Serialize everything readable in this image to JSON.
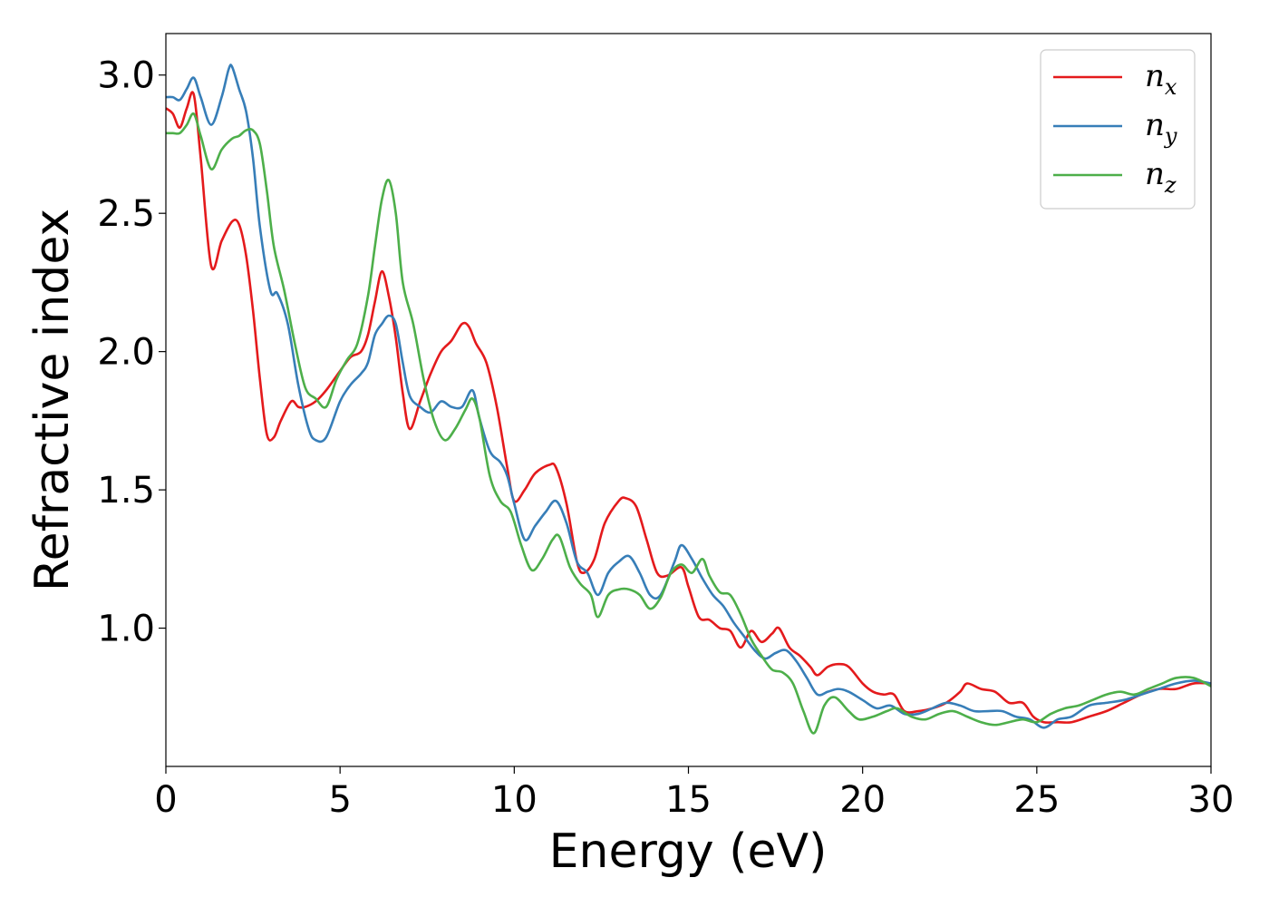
{
  "chart_data": {
    "type": "line",
    "title": "",
    "xlabel": "Energy (eV)",
    "ylabel": "Refractive index",
    "xlim": [
      0,
      30
    ],
    "ylim": [
      0.5,
      3.15
    ],
    "xticks": [
      0,
      5,
      10,
      15,
      20,
      25,
      30
    ],
    "xtick_labels": [
      "0",
      "5",
      "10",
      "15",
      "20",
      "25",
      "30"
    ],
    "yticks": [
      1.0,
      1.5,
      2.0,
      2.5,
      3.0
    ],
    "ytick_labels": [
      "1.0",
      "1.5",
      "2.0",
      "2.5",
      "3.0"
    ],
    "grid": false,
    "legend_position": "top-right",
    "series": [
      {
        "name": "n",
        "subscript": "x",
        "color": "#e41a1c",
        "points": [
          [
            0,
            2.88
          ],
          [
            0.2,
            2.86
          ],
          [
            0.4,
            2.81
          ],
          [
            0.6,
            2.88
          ],
          [
            0.8,
            2.93
          ],
          [
            1.0,
            2.7
          ],
          [
            1.3,
            2.31
          ],
          [
            1.6,
            2.4
          ],
          [
            1.9,
            2.47
          ],
          [
            2.1,
            2.46
          ],
          [
            2.3,
            2.35
          ],
          [
            2.5,
            2.15
          ],
          [
            2.7,
            1.9
          ],
          [
            2.9,
            1.7
          ],
          [
            3.1,
            1.69
          ],
          [
            3.3,
            1.75
          ],
          [
            3.6,
            1.82
          ],
          [
            3.8,
            1.8
          ],
          [
            4.0,
            1.8
          ],
          [
            4.3,
            1.82
          ],
          [
            4.6,
            1.86
          ],
          [
            5.0,
            1.93
          ],
          [
            5.3,
            1.98
          ],
          [
            5.6,
            2.0
          ],
          [
            5.8,
            2.06
          ],
          [
            6.0,
            2.18
          ],
          [
            6.2,
            2.29
          ],
          [
            6.4,
            2.2
          ],
          [
            6.6,
            2.05
          ],
          [
            6.8,
            1.85
          ],
          [
            7.0,
            1.72
          ],
          [
            7.3,
            1.82
          ],
          [
            7.6,
            1.92
          ],
          [
            7.9,
            2.0
          ],
          [
            8.2,
            2.04
          ],
          [
            8.5,
            2.1
          ],
          [
            8.7,
            2.09
          ],
          [
            8.9,
            2.03
          ],
          [
            9.2,
            1.96
          ],
          [
            9.5,
            1.8
          ],
          [
            9.8,
            1.58
          ],
          [
            10.0,
            1.46
          ],
          [
            10.3,
            1.5
          ],
          [
            10.6,
            1.56
          ],
          [
            11.0,
            1.59
          ],
          [
            11.2,
            1.58
          ],
          [
            11.5,
            1.45
          ],
          [
            11.8,
            1.24
          ],
          [
            12.0,
            1.2
          ],
          [
            12.3,
            1.25
          ],
          [
            12.6,
            1.38
          ],
          [
            13.0,
            1.46
          ],
          [
            13.2,
            1.47
          ],
          [
            13.5,
            1.44
          ],
          [
            13.8,
            1.32
          ],
          [
            14.1,
            1.2
          ],
          [
            14.4,
            1.19
          ],
          [
            14.8,
            1.22
          ],
          [
            15.0,
            1.15
          ],
          [
            15.3,
            1.04
          ],
          [
            15.6,
            1.03
          ],
          [
            15.9,
            1.0
          ],
          [
            16.2,
            0.99
          ],
          [
            16.5,
            0.93
          ],
          [
            16.8,
            0.99
          ],
          [
            17.1,
            0.95
          ],
          [
            17.4,
            0.98
          ],
          [
            17.6,
            1.0
          ],
          [
            17.9,
            0.93
          ],
          [
            18.2,
            0.9
          ],
          [
            18.5,
            0.86
          ],
          [
            18.7,
            0.83
          ],
          [
            19.0,
            0.86
          ],
          [
            19.3,
            0.87
          ],
          [
            19.6,
            0.86
          ],
          [
            20.0,
            0.8
          ],
          [
            20.3,
            0.77
          ],
          [
            20.6,
            0.76
          ],
          [
            20.9,
            0.76
          ],
          [
            21.2,
            0.7
          ],
          [
            21.6,
            0.7
          ],
          [
            22.0,
            0.71
          ],
          [
            22.4,
            0.73
          ],
          [
            22.8,
            0.77
          ],
          [
            23.0,
            0.8
          ],
          [
            23.4,
            0.78
          ],
          [
            23.8,
            0.77
          ],
          [
            24.2,
            0.73
          ],
          [
            24.6,
            0.73
          ],
          [
            24.9,
            0.68
          ],
          [
            25.2,
            0.66
          ],
          [
            25.6,
            0.66
          ],
          [
            26.0,
            0.66
          ],
          [
            26.5,
            0.68
          ],
          [
            27.0,
            0.7
          ],
          [
            27.5,
            0.73
          ],
          [
            28.0,
            0.76
          ],
          [
            28.5,
            0.78
          ],
          [
            29.0,
            0.78
          ],
          [
            29.5,
            0.8
          ],
          [
            30.0,
            0.8
          ]
        ]
      },
      {
        "name": "n",
        "subscript": "y",
        "color": "#377eb8",
        "points": [
          [
            0,
            2.92
          ],
          [
            0.2,
            2.92
          ],
          [
            0.4,
            2.91
          ],
          [
            0.6,
            2.95
          ],
          [
            0.8,
            2.99
          ],
          [
            1.0,
            2.92
          ],
          [
            1.3,
            2.82
          ],
          [
            1.6,
            2.92
          ],
          [
            1.8,
            3.02
          ],
          [
            1.9,
            3.03
          ],
          [
            2.1,
            2.95
          ],
          [
            2.3,
            2.87
          ],
          [
            2.5,
            2.7
          ],
          [
            2.7,
            2.45
          ],
          [
            3.0,
            2.22
          ],
          [
            3.2,
            2.21
          ],
          [
            3.5,
            2.1
          ],
          [
            3.8,
            1.88
          ],
          [
            4.1,
            1.72
          ],
          [
            4.3,
            1.68
          ],
          [
            4.6,
            1.69
          ],
          [
            5.0,
            1.82
          ],
          [
            5.3,
            1.88
          ],
          [
            5.6,
            1.92
          ],
          [
            5.8,
            1.96
          ],
          [
            6.0,
            2.06
          ],
          [
            6.2,
            2.1
          ],
          [
            6.4,
            2.13
          ],
          [
            6.6,
            2.1
          ],
          [
            6.8,
            1.96
          ],
          [
            7.0,
            1.84
          ],
          [
            7.3,
            1.8
          ],
          [
            7.6,
            1.78
          ],
          [
            7.9,
            1.82
          ],
          [
            8.2,
            1.8
          ],
          [
            8.5,
            1.8
          ],
          [
            8.8,
            1.86
          ],
          [
            9.0,
            1.76
          ],
          [
            9.3,
            1.64
          ],
          [
            9.6,
            1.6
          ],
          [
            9.8,
            1.55
          ],
          [
            10.0,
            1.45
          ],
          [
            10.3,
            1.32
          ],
          [
            10.6,
            1.37
          ],
          [
            10.9,
            1.42
          ],
          [
            11.2,
            1.46
          ],
          [
            11.5,
            1.38
          ],
          [
            11.8,
            1.24
          ],
          [
            12.1,
            1.2
          ],
          [
            12.4,
            1.12
          ],
          [
            12.7,
            1.2
          ],
          [
            13.0,
            1.24
          ],
          [
            13.3,
            1.26
          ],
          [
            13.6,
            1.2
          ],
          [
            13.9,
            1.12
          ],
          [
            14.2,
            1.12
          ],
          [
            14.6,
            1.24
          ],
          [
            14.8,
            1.3
          ],
          [
            15.1,
            1.25
          ],
          [
            15.4,
            1.18
          ],
          [
            15.7,
            1.12
          ],
          [
            16.0,
            1.08
          ],
          [
            16.3,
            1.02
          ],
          [
            16.6,
            0.97
          ],
          [
            16.9,
            0.92
          ],
          [
            17.2,
            0.89
          ],
          [
            17.5,
            0.91
          ],
          [
            17.8,
            0.92
          ],
          [
            18.1,
            0.88
          ],
          [
            18.4,
            0.82
          ],
          [
            18.7,
            0.76
          ],
          [
            19.0,
            0.77
          ],
          [
            19.3,
            0.78
          ],
          [
            19.6,
            0.77
          ],
          [
            20.0,
            0.74
          ],
          [
            20.4,
            0.71
          ],
          [
            20.8,
            0.72
          ],
          [
            21.2,
            0.69
          ],
          [
            21.6,
            0.69
          ],
          [
            22.0,
            0.71
          ],
          [
            22.4,
            0.73
          ],
          [
            22.8,
            0.72
          ],
          [
            23.2,
            0.7
          ],
          [
            23.6,
            0.7
          ],
          [
            24.0,
            0.7
          ],
          [
            24.4,
            0.68
          ],
          [
            24.8,
            0.67
          ],
          [
            25.2,
            0.64
          ],
          [
            25.6,
            0.67
          ],
          [
            26.0,
            0.68
          ],
          [
            26.5,
            0.72
          ],
          [
            27.0,
            0.73
          ],
          [
            27.5,
            0.74
          ],
          [
            28.0,
            0.76
          ],
          [
            28.5,
            0.78
          ],
          [
            29.0,
            0.8
          ],
          [
            29.5,
            0.81
          ],
          [
            30.0,
            0.8
          ]
        ]
      },
      {
        "name": "n",
        "subscript": "z",
        "color": "#4daf4a",
        "points": [
          [
            0,
            2.79
          ],
          [
            0.2,
            2.79
          ],
          [
            0.4,
            2.79
          ],
          [
            0.6,
            2.82
          ],
          [
            0.8,
            2.86
          ],
          [
            1.0,
            2.78
          ],
          [
            1.3,
            2.66
          ],
          [
            1.6,
            2.73
          ],
          [
            1.9,
            2.77
          ],
          [
            2.1,
            2.78
          ],
          [
            2.3,
            2.8
          ],
          [
            2.5,
            2.8
          ],
          [
            2.7,
            2.75
          ],
          [
            2.9,
            2.58
          ],
          [
            3.1,
            2.38
          ],
          [
            3.4,
            2.22
          ],
          [
            3.7,
            2.03
          ],
          [
            4.0,
            1.87
          ],
          [
            4.3,
            1.83
          ],
          [
            4.6,
            1.8
          ],
          [
            4.9,
            1.9
          ],
          [
            5.2,
            1.97
          ],
          [
            5.5,
            2.03
          ],
          [
            5.8,
            2.2
          ],
          [
            6.0,
            2.38
          ],
          [
            6.2,
            2.55
          ],
          [
            6.4,
            2.62
          ],
          [
            6.6,
            2.5
          ],
          [
            6.8,
            2.25
          ],
          [
            7.1,
            2.1
          ],
          [
            7.4,
            1.9
          ],
          [
            7.7,
            1.75
          ],
          [
            8.0,
            1.68
          ],
          [
            8.3,
            1.72
          ],
          [
            8.6,
            1.79
          ],
          [
            8.8,
            1.83
          ],
          [
            9.0,
            1.76
          ],
          [
            9.3,
            1.55
          ],
          [
            9.6,
            1.46
          ],
          [
            9.9,
            1.42
          ],
          [
            10.2,
            1.3
          ],
          [
            10.5,
            1.21
          ],
          [
            10.8,
            1.25
          ],
          [
            11.1,
            1.32
          ],
          [
            11.3,
            1.33
          ],
          [
            11.6,
            1.22
          ],
          [
            11.9,
            1.16
          ],
          [
            12.2,
            1.12
          ],
          [
            12.4,
            1.04
          ],
          [
            12.7,
            1.12
          ],
          [
            13.0,
            1.14
          ],
          [
            13.3,
            1.14
          ],
          [
            13.6,
            1.12
          ],
          [
            13.9,
            1.07
          ],
          [
            14.2,
            1.11
          ],
          [
            14.5,
            1.2
          ],
          [
            14.8,
            1.23
          ],
          [
            15.1,
            1.2
          ],
          [
            15.4,
            1.25
          ],
          [
            15.6,
            1.19
          ],
          [
            15.9,
            1.13
          ],
          [
            16.2,
            1.12
          ],
          [
            16.5,
            1.05
          ],
          [
            16.8,
            0.96
          ],
          [
            17.1,
            0.9
          ],
          [
            17.4,
            0.85
          ],
          [
            17.7,
            0.84
          ],
          [
            18.0,
            0.8
          ],
          [
            18.3,
            0.7
          ],
          [
            18.6,
            0.62
          ],
          [
            18.9,
            0.72
          ],
          [
            19.2,
            0.75
          ],
          [
            19.6,
            0.7
          ],
          [
            19.9,
            0.67
          ],
          [
            20.3,
            0.68
          ],
          [
            20.7,
            0.7
          ],
          [
            21.0,
            0.71
          ],
          [
            21.4,
            0.68
          ],
          [
            21.8,
            0.67
          ],
          [
            22.2,
            0.69
          ],
          [
            22.6,
            0.7
          ],
          [
            23.0,
            0.68
          ],
          [
            23.4,
            0.66
          ],
          [
            23.8,
            0.65
          ],
          [
            24.2,
            0.66
          ],
          [
            24.6,
            0.67
          ],
          [
            25.0,
            0.66
          ],
          [
            25.4,
            0.69
          ],
          [
            25.8,
            0.71
          ],
          [
            26.2,
            0.72
          ],
          [
            26.6,
            0.74
          ],
          [
            27.0,
            0.76
          ],
          [
            27.4,
            0.77
          ],
          [
            27.8,
            0.76
          ],
          [
            28.2,
            0.78
          ],
          [
            28.6,
            0.8
          ],
          [
            29.0,
            0.82
          ],
          [
            29.5,
            0.82
          ],
          [
            30.0,
            0.79
          ]
        ]
      }
    ]
  }
}
